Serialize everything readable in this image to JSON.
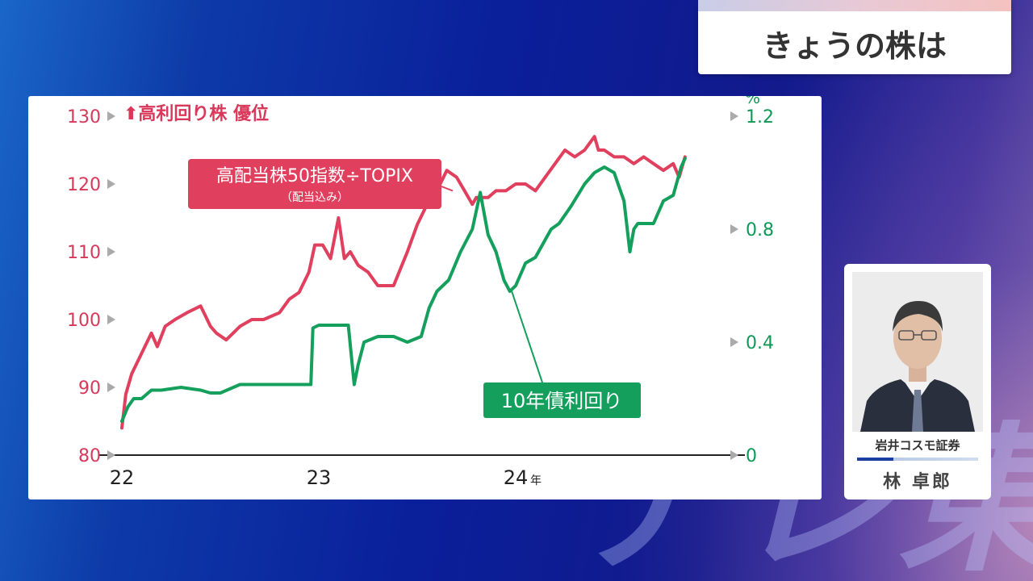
{
  "segment_title": "きょうの株は",
  "watermark_text": "テレ東",
  "chart_data": {
    "type": "line",
    "annotation_top": "⬆高利回り株 優位",
    "x_ticks": [
      "22",
      "23",
      "24"
    ],
    "x_unit": "年",
    "x_range": [
      2022.0,
      2025.0
    ],
    "left_axis": {
      "ylim": [
        80,
        130
      ],
      "ticks": [
        "80",
        "90",
        "100",
        "110",
        "120",
        "130"
      ],
      "color": "#d9385a"
    },
    "right_axis": {
      "unit": "%",
      "ylim": [
        0,
        1.2
      ],
      "ticks": [
        "0",
        "0.4",
        "0.8",
        "1.2"
      ],
      "color": "#0e9a55"
    },
    "series": [
      {
        "name": "高配当株50指数÷TOPIX",
        "sub_label": "（配当込み）",
        "axis": "left",
        "color": "#e0405e",
        "x": [
          2022.0,
          2022.02,
          2022.05,
          2022.1,
          2022.15,
          2022.18,
          2022.22,
          2022.27,
          2022.33,
          2022.4,
          2022.45,
          2022.48,
          2022.53,
          2022.6,
          2022.66,
          2022.72,
          2022.8,
          2022.85,
          2022.9,
          2022.95,
          2022.98,
          2023.02,
          2023.06,
          2023.1,
          2023.13,
          2023.16,
          2023.2,
          2023.25,
          2023.3,
          2023.38,
          2023.45,
          2023.5,
          2023.55,
          2023.6,
          2023.65,
          2023.7,
          2023.74,
          2023.78,
          2023.8,
          2023.83,
          2023.86,
          2023.9,
          2023.95,
          2024.0,
          2024.05,
          2024.1,
          2024.15,
          2024.2,
          2024.25,
          2024.3,
          2024.35,
          2024.4,
          2024.42,
          2024.45,
          2024.5,
          2024.55,
          2024.6,
          2024.65,
          2024.7,
          2024.75,
          2024.8,
          2024.83,
          2024.86
        ],
        "values": [
          84,
          89,
          92,
          95,
          98,
          96,
          99,
          100,
          101,
          102,
          99,
          98,
          97,
          99,
          100,
          100,
          101,
          103,
          104,
          107,
          111,
          111,
          109,
          115,
          109,
          110,
          108,
          107,
          105,
          105,
          110,
          114,
          117,
          119,
          122,
          121,
          119,
          117,
          118,
          118,
          118,
          119,
          119,
          120,
          120,
          119,
          121,
          123,
          125,
          124,
          125,
          127,
          125,
          125,
          124,
          124,
          123,
          124,
          123,
          122,
          123,
          121,
          124
        ]
      },
      {
        "name": "10年債利回り",
        "axis": "right",
        "color": "#14a05c",
        "x": [
          2022.0,
          2022.03,
          2022.06,
          2022.1,
          2022.15,
          2022.2,
          2022.3,
          2022.4,
          2022.45,
          2022.5,
          2022.6,
          2022.7,
          2022.8,
          2022.9,
          2022.96,
          2022.97,
          2023.0,
          2023.05,
          2023.15,
          2023.18,
          2023.2,
          2023.23,
          2023.3,
          2023.38,
          2023.45,
          2023.52,
          2023.56,
          2023.6,
          2023.66,
          2023.72,
          2023.78,
          2023.82,
          2023.86,
          2023.9,
          2023.94,
          2023.97,
          2024.0,
          2024.05,
          2024.1,
          2024.18,
          2024.22,
          2024.28,
          2024.35,
          2024.4,
          2024.45,
          2024.5,
          2024.55,
          2024.58,
          2024.6,
          2024.62,
          2024.7,
          2024.75,
          2024.8,
          2024.84,
          2024.86
        ],
        "values": [
          0.12,
          0.17,
          0.2,
          0.2,
          0.23,
          0.23,
          0.24,
          0.23,
          0.22,
          0.22,
          0.25,
          0.25,
          0.25,
          0.25,
          0.25,
          0.45,
          0.46,
          0.46,
          0.46,
          0.25,
          0.32,
          0.4,
          0.42,
          0.42,
          0.4,
          0.42,
          0.52,
          0.58,
          0.62,
          0.72,
          0.8,
          0.93,
          0.78,
          0.72,
          0.62,
          0.58,
          0.6,
          0.68,
          0.7,
          0.8,
          0.82,
          0.88,
          0.96,
          1.0,
          1.02,
          1.0,
          0.9,
          0.72,
          0.8,
          0.82,
          0.82,
          0.9,
          0.92,
          1.02,
          1.05
        ]
      }
    ]
  },
  "guest": {
    "company": "岩井コスモ証券",
    "name": "林 卓郎"
  }
}
